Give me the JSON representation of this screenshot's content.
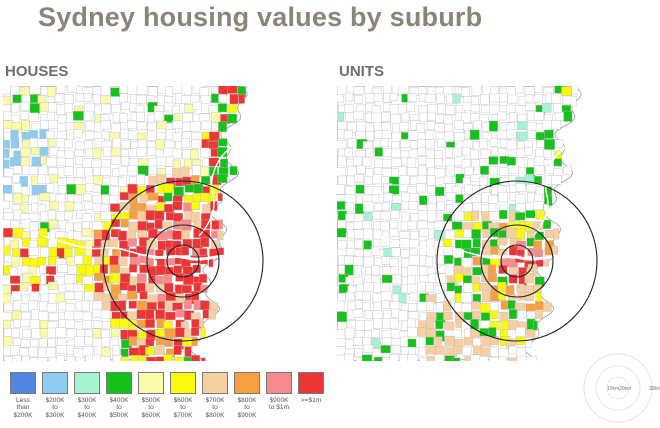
{
  "title": "Sydney housing values by suburb",
  "panels": {
    "houses": {
      "label": "HOUSES"
    },
    "units": {
      "label": "UNITS"
    }
  },
  "legend": [
    {
      "label": "Less\nthan\n$200K",
      "color": "#4f87e0"
    },
    {
      "label": "$200K\nto\n$300K",
      "color": "#8ecbf0"
    },
    {
      "label": "$300K\nto\n$400K",
      "color": "#a6f3d0"
    },
    {
      "label": "$400K\nto\n$500K",
      "color": "#16c21a"
    },
    {
      "label": "$500K\nto\n$600K",
      "color": "#fbfbaa"
    },
    {
      "label": "$600K\nto\n$700K",
      "color": "#fafa0a"
    },
    {
      "label": "$700K\nto\n$800K",
      "color": "#f8cfa0"
    },
    {
      "label": "$800K\nto\n$900K",
      "color": "#f6a042"
    },
    {
      "label": "$900K\nto $1m",
      "color": "#f78a8a"
    },
    {
      "label": ">=$1m",
      "color": "#ee3535"
    }
  ],
  "scale_legend": {
    "labels": [
      "10km",
      "20km",
      "30km"
    ]
  },
  "colors": {
    "title": "#8c8475",
    "panel_label": "#6e6e6e",
    "sea": "#ffffff",
    "suburb_border": "#b9b9c3",
    "ring": "#222222"
  }
}
